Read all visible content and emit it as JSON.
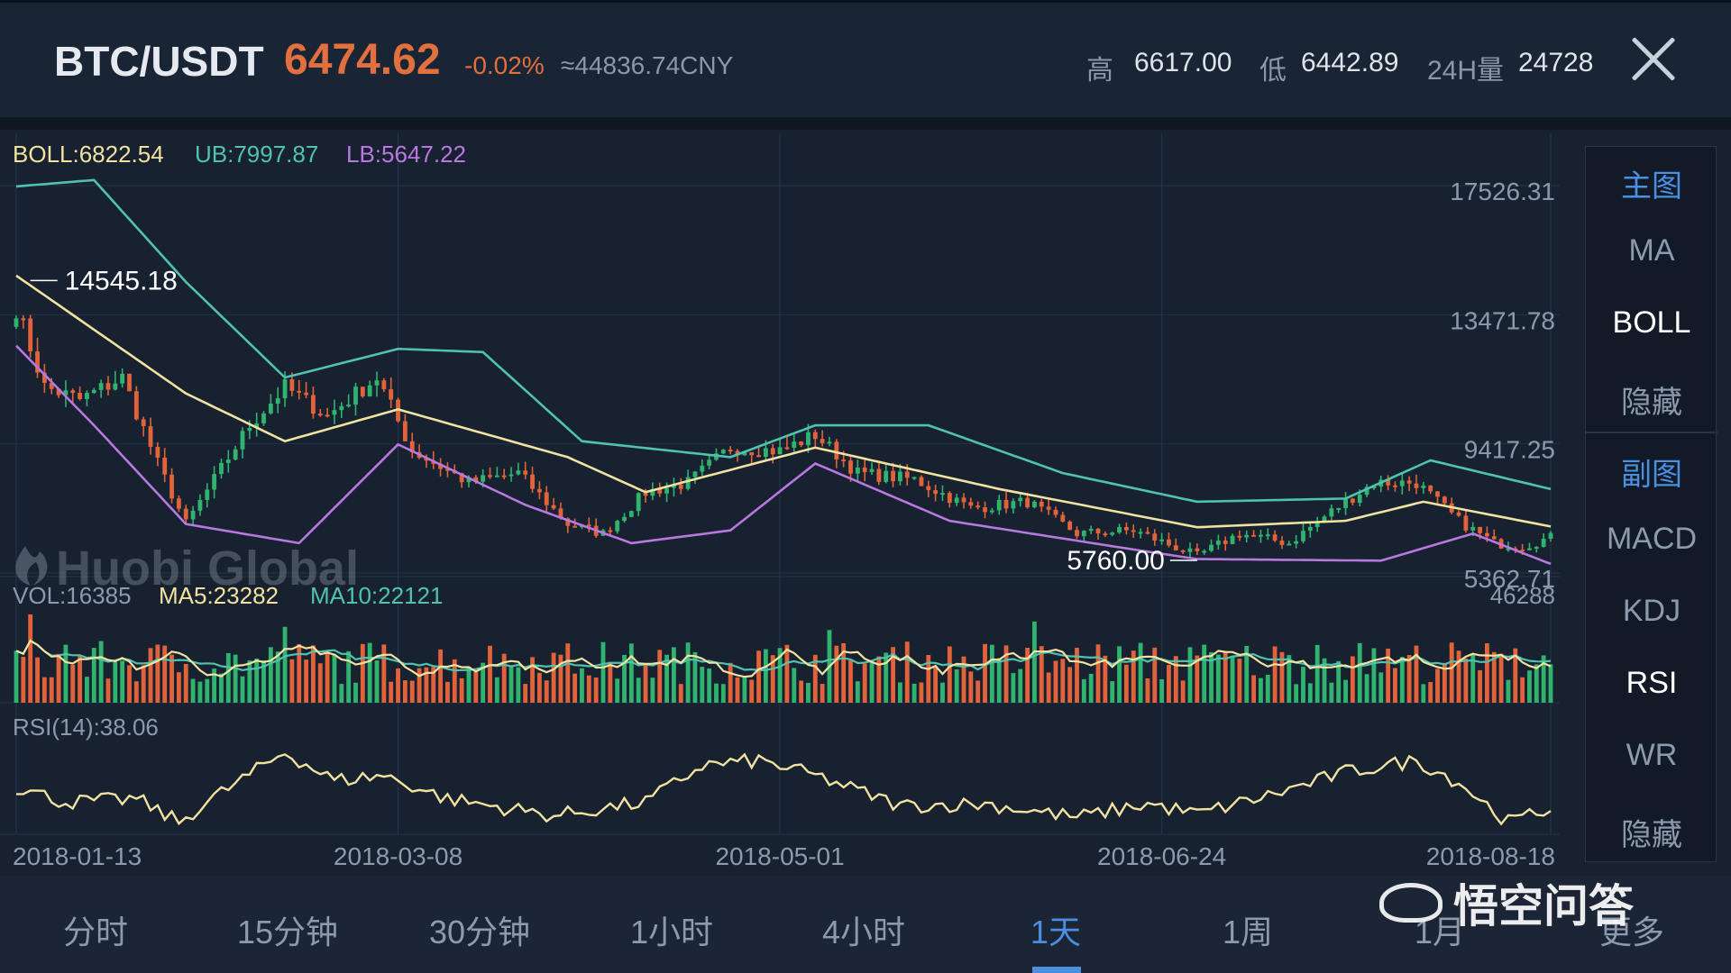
{
  "header": {
    "pair": "BTC/USDT",
    "price": "6474.62",
    "change": "-0.02%",
    "cny": "≈44836.74CNY",
    "high_label": "高",
    "high_value": "6617.00",
    "low_label": "低",
    "low_value": "6442.89",
    "vol_label": "24H量",
    "vol_value": "24728"
  },
  "side_panel": {
    "items": [
      "主图",
      "MA",
      "BOLL",
      "隐藏",
      "副图",
      "MACD",
      "KDJ",
      "RSI",
      "WR",
      "隐藏"
    ],
    "active": [
      "BOLL",
      "RSI"
    ],
    "sections": [
      "主图",
      "副图"
    ]
  },
  "tabs": {
    "items": [
      "分时",
      "15分钟",
      "30分钟",
      "1小时",
      "4小时",
      "1天",
      "1周",
      "1月",
      "更多"
    ],
    "active": "1天"
  },
  "watermark": {
    "text": "悟空问答",
    "chart_logo": "Huobi Global"
  },
  "colors": {
    "background": "#172130",
    "up": "#2fb36e",
    "down": "#e2633a",
    "boll_mid": "#f2e2a0",
    "boll_ub": "#4fc3b0",
    "boll_lb": "#b878e0",
    "rsi": "#f2e2a0",
    "accent": "#4b8fe0"
  },
  "chart_data": [
    {
      "type": "candlestick",
      "indicator_labels": [
        "BOLL:6822.54",
        "UB:7997.87",
        "LB:5647.22"
      ],
      "y_ticks": [
        "17526.31",
        "13471.78",
        "9417.25",
        "5362.71"
      ],
      "y_tick_values": [
        17526.31,
        13471.78,
        9417.25,
        5362.71
      ],
      "ylim": [
        5362.71,
        17526.31
      ],
      "x_ticks": [
        "2018-01-13",
        "2018-03-08",
        "2018-05-01",
        "2018-06-24",
        "2018-08-18"
      ],
      "annotations": [
        {
          "text": "14545.18",
          "date": "2018-01-15",
          "value": 14545.18,
          "kind": "max"
        },
        {
          "text": "5760.00",
          "date": "2018-06-29",
          "value": 5760.0,
          "kind": "min"
        }
      ],
      "close_path": [
        [
          "2018-01-13",
          13700
        ],
        [
          "2018-01-17",
          11200
        ],
        [
          "2018-01-22",
          10800
        ],
        [
          "2018-01-28",
          11500
        ],
        [
          "2018-02-02",
          8800
        ],
        [
          "2018-02-06",
          6900
        ],
        [
          "2018-02-10",
          8300
        ],
        [
          "2018-02-15",
          10000
        ],
        [
          "2018-02-20",
          11200
        ],
        [
          "2018-02-26",
          10300
        ],
        [
          "2018-03-05",
          11500
        ],
        [
          "2018-03-10",
          9200
        ],
        [
          "2018-03-18",
          8200
        ],
        [
          "2018-03-25",
          8500
        ],
        [
          "2018-04-01",
          6900
        ],
        [
          "2018-04-06",
          6600
        ],
        [
          "2018-04-12",
          7900
        ],
        [
          "2018-04-18",
          8200
        ],
        [
          "2018-04-24",
          9300
        ],
        [
          "2018-05-01",
          9200
        ],
        [
          "2018-05-06",
          9700
        ],
        [
          "2018-05-12",
          8500
        ],
        [
          "2018-05-20",
          8300
        ],
        [
          "2018-05-28",
          7400
        ],
        [
          "2018-06-05",
          7600
        ],
        [
          "2018-06-12",
          6600
        ],
        [
          "2018-06-20",
          6700
        ],
        [
          "2018-06-29",
          5900
        ],
        [
          "2018-07-05",
          6600
        ],
        [
          "2018-07-12",
          6300
        ],
        [
          "2018-07-18",
          7300
        ],
        [
          "2018-07-24",
          8200
        ],
        [
          "2018-07-30",
          8200
        ],
        [
          "2018-08-05",
          7000
        ],
        [
          "2018-08-10",
          6300
        ],
        [
          "2018-08-14",
          6200
        ],
        [
          "2018-08-18",
          6475
        ]
      ],
      "mid_path": [
        [
          "2018-01-13",
          14700
        ],
        [
          "2018-02-06",
          11000
        ],
        [
          "2018-02-20",
          9500
        ],
        [
          "2018-03-08",
          10500
        ],
        [
          "2018-04-01",
          9000
        ],
        [
          "2018-04-12",
          7900
        ],
        [
          "2018-05-06",
          9300
        ],
        [
          "2018-06-01",
          8000
        ],
        [
          "2018-06-29",
          6800
        ],
        [
          "2018-07-20",
          7000
        ],
        [
          "2018-07-31",
          7600
        ],
        [
          "2018-08-18",
          6822.54
        ]
      ],
      "upper_path": [
        [
          "2018-01-13",
          17500
        ],
        [
          "2018-01-24",
          17700
        ],
        [
          "2018-02-06",
          14500
        ],
        [
          "2018-02-20",
          11500
        ],
        [
          "2018-03-08",
          12400
        ],
        [
          "2018-03-20",
          12300
        ],
        [
          "2018-04-03",
          9500
        ],
        [
          "2018-04-24",
          9000
        ],
        [
          "2018-05-06",
          10000
        ],
        [
          "2018-05-22",
          10000
        ],
        [
          "2018-06-10",
          8500
        ],
        [
          "2018-06-29",
          7600
        ],
        [
          "2018-07-20",
          7700
        ],
        [
          "2018-08-01",
          8900
        ],
        [
          "2018-08-18",
          7997.87
        ]
      ],
      "lower_path": [
        [
          "2018-01-13",
          12500
        ],
        [
          "2018-01-24",
          10000
        ],
        [
          "2018-02-06",
          6900
        ],
        [
          "2018-02-22",
          6300
        ],
        [
          "2018-03-08",
          9400
        ],
        [
          "2018-03-26",
          7500
        ],
        [
          "2018-04-10",
          6300
        ],
        [
          "2018-04-24",
          6700
        ],
        [
          "2018-05-06",
          8800
        ],
        [
          "2018-05-25",
          7000
        ],
        [
          "2018-06-20",
          6100
        ],
        [
          "2018-06-29",
          5800
        ],
        [
          "2018-07-25",
          5750
        ],
        [
          "2018-08-07",
          6600
        ],
        [
          "2018-08-18",
          5647.22
        ]
      ]
    },
    {
      "type": "bar",
      "indicator_labels": [
        "VOL:16385",
        "MA5:23282",
        "MA10:22121"
      ],
      "y_max_label": "46288",
      "ylim": [
        0,
        46288
      ],
      "typical_range": [
        9000,
        30000
      ]
    },
    {
      "type": "line",
      "indicator_labels": [
        "RSI(14):38.06"
      ],
      "ylim": [
        25,
        80
      ],
      "points": [
        [
          "2018-01-13",
          51
        ],
        [
          "2018-01-20",
          42
        ],
        [
          "2018-01-30",
          44
        ],
        [
          "2018-02-05",
          30
        ],
        [
          "2018-02-10",
          45
        ],
        [
          "2018-02-20",
          72
        ],
        [
          "2018-02-27",
          55
        ],
        [
          "2018-03-06",
          58
        ],
        [
          "2018-03-15",
          44
        ],
        [
          "2018-03-30",
          34
        ],
        [
          "2018-04-12",
          42
        ],
        [
          "2018-04-20",
          64
        ],
        [
          "2018-04-28",
          67
        ],
        [
          "2018-05-06",
          58
        ],
        [
          "2018-05-18",
          40
        ],
        [
          "2018-05-30",
          41
        ],
        [
          "2018-06-12",
          33
        ],
        [
          "2018-06-22",
          41
        ],
        [
          "2018-06-29",
          35
        ],
        [
          "2018-07-10",
          47
        ],
        [
          "2018-07-20",
          60
        ],
        [
          "2018-07-30",
          67
        ],
        [
          "2018-08-05",
          54
        ],
        [
          "2018-08-12",
          30
        ],
        [
          "2018-08-18",
          38.06
        ]
      ]
    }
  ]
}
